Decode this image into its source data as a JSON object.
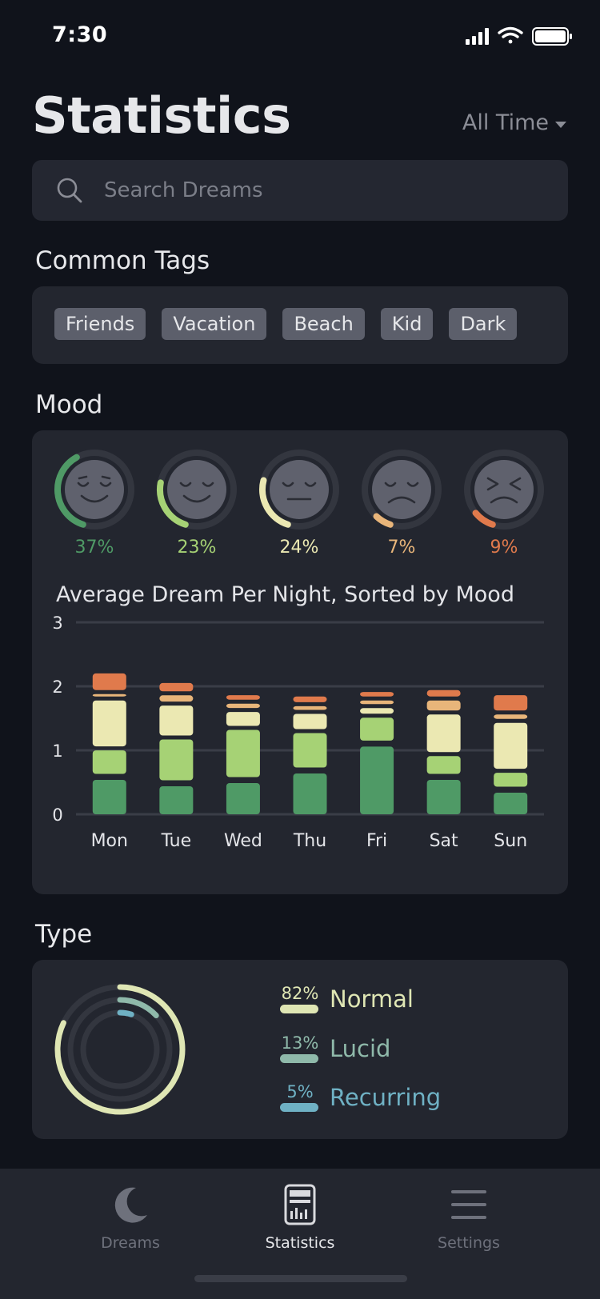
{
  "status": {
    "time": "7:30"
  },
  "header": {
    "title": "Statistics",
    "filter_label": "All Time"
  },
  "search": {
    "placeholder": "Search Dreams",
    "value": ""
  },
  "tags_section": {
    "title": "Common Tags",
    "tags": [
      "Friends",
      "Vacation",
      "Beach",
      "Kid",
      "Dark"
    ]
  },
  "mood_section": {
    "title": "Mood",
    "moods": [
      {
        "name": "very-happy",
        "pct_label": "37%",
        "fraction": 0.37,
        "color": "#4f9a66"
      },
      {
        "name": "happy",
        "pct_label": "23%",
        "fraction": 0.23,
        "color": "#a6d275"
      },
      {
        "name": "neutral",
        "pct_label": "24%",
        "fraction": 0.24,
        "color": "#ebe8b2"
      },
      {
        "name": "sad",
        "pct_label": "7%",
        "fraction": 0.07,
        "color": "#e8b57a"
      },
      {
        "name": "upset",
        "pct_label": "9%",
        "fraction": 0.09,
        "color": "#e07a4c"
      }
    ],
    "chart_title": "Average Dream Per Night, Sorted by Mood"
  },
  "chart_data": {
    "type": "bar",
    "stacked": true,
    "title": "Average Dream Per Night, Sorted by Mood",
    "xlabel": "",
    "ylabel": "",
    "ylim": [
      0,
      3
    ],
    "yticks": [
      0,
      1,
      2,
      3
    ],
    "grid": true,
    "categories": [
      "Mon",
      "Tue",
      "Wed",
      "Thu",
      "Fri",
      "Sat",
      "Sun"
    ],
    "series": [
      {
        "color": "#4f9a66",
        "values": [
          0.6,
          0.5,
          0.55,
          0.7,
          1.12,
          0.6,
          0.4
        ]
      },
      {
        "color": "#a6d275",
        "values": [
          0.43,
          0.7,
          0.8,
          0.6,
          0.42,
          0.34,
          0.28
        ]
      },
      {
        "color": "#ebe8b2",
        "values": [
          0.78,
          0.53,
          0.28,
          0.3,
          0.15,
          0.65,
          0.78
        ]
      },
      {
        "color": "#e8b57a",
        "values": [
          0.1,
          0.16,
          0.13,
          0.12,
          0.12,
          0.22,
          0.13
        ]
      },
      {
        "color": "#e07a4c",
        "values": [
          0.26,
          0.13,
          0.07,
          0.09,
          0.07,
          0.1,
          0.24
        ]
      }
    ]
  },
  "type_section": {
    "title": "Type",
    "types": [
      {
        "label": "Normal",
        "pct_label": "82%",
        "fraction": 0.82,
        "color": "#dfe6b4"
      },
      {
        "label": "Lucid",
        "pct_label": "13%",
        "fraction": 0.13,
        "color": "#8fb9aa"
      },
      {
        "label": "Recurring",
        "pct_label": "5%",
        "fraction": 0.05,
        "color": "#6fb1c4"
      }
    ]
  },
  "tabbar": {
    "items": [
      {
        "label": "Dreams",
        "icon": "moon-icon",
        "active": false
      },
      {
        "label": "Statistics",
        "icon": "calculator-icon",
        "active": true
      },
      {
        "label": "Settings",
        "icon": "menu-icon",
        "active": false
      }
    ]
  },
  "colors": {
    "background": "#10131b",
    "card": "#23262f",
    "text_muted": "#8b8d96",
    "tab_active": "#e6e7ea",
    "tab_inactive": "#6e717c"
  }
}
